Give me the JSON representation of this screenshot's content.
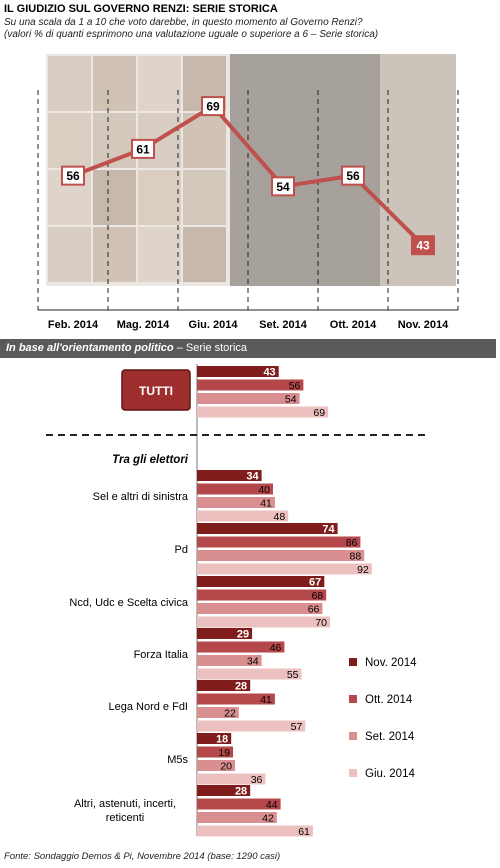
{
  "header": {
    "title": "IL GIUDIZIO  SUL GOVERNO RENZI: SERIE STORICA",
    "subtitle_line1": "Su una scala da 1 a 10 che voto darebbe, in questo momento al Governo Renzi?",
    "subtitle_line2": "(valori % di quanti esprimono una valutazione uguale o superiore a 6 – Serie storica)"
  },
  "section": {
    "title_bold": "In base all'orientamento politico",
    "title_rest": " – Serie storica"
  },
  "source": "Fonte: Sondaggio Demos & Pi, Novembre 2014 (base: 1290 casi)",
  "colors": {
    "line": "#c0504d",
    "nov": "#7f1d1d",
    "ott": "#b5484a",
    "set": "#d98f8f",
    "giu": "#edc0c0",
    "tutti_button": "#9e2e2e",
    "banner": "#5a5a5a"
  },
  "chart_data": [
    {
      "type": "line",
      "categories": [
        "Feb. 2014",
        "Mag. 2014",
        "Giu. 2014",
        "Set. 2014",
        "Ott. 2014",
        "Nov. 2014"
      ],
      "values": [
        56,
        61,
        69,
        54,
        56,
        43
      ],
      "ylim": [
        35,
        75
      ]
    },
    {
      "type": "bar",
      "orientation": "horizontal",
      "all_label": "TUTTI",
      "all_values": [
        43,
        56,
        54,
        69
      ],
      "group_heading": "Tra gli elettori",
      "legend_position": "right",
      "series": [
        {
          "name": "Nov. 2014"
        },
        {
          "name": "Ott. 2014"
        },
        {
          "name": "Set. 2014"
        },
        {
          "name": "Giu. 2014"
        }
      ],
      "categories": [
        {
          "label": "Sel e altri di sinistra",
          "values": [
            34,
            40,
            41,
            48
          ]
        },
        {
          "label": "Pd",
          "values": [
            74,
            86,
            88,
            92
          ]
        },
        {
          "label": "Ncd, Udc e Scelta civica",
          "values": [
            67,
            68,
            66,
            70
          ]
        },
        {
          "label": "Forza Italia",
          "values": [
            29,
            46,
            34,
            55
          ]
        },
        {
          "label": "Lega Nord e FdI",
          "values": [
            28,
            41,
            22,
            57
          ]
        },
        {
          "label": "M5s",
          "values": [
            18,
            19,
            20,
            36
          ]
        },
        {
          "label": "Altri, astenuti, incerti, reticenti",
          "values": [
            28,
            44,
            42,
            61
          ]
        }
      ]
    }
  ]
}
